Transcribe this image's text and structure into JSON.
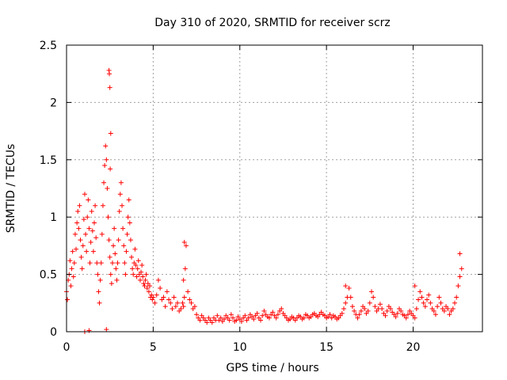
{
  "chart_data": {
    "type": "scatter",
    "title": "Day 310 of 2020, SRMTID for receiver scrz",
    "xlabel": "GPS time / hours",
    "ylabel": "SRMTID / TECUs",
    "xlim": [
      0,
      24
    ],
    "ylim": [
      0,
      2.5
    ],
    "xticks": [
      0,
      5,
      10,
      15,
      20
    ],
    "yticks": [
      0,
      0.5,
      1,
      1.5,
      2,
      2.5
    ],
    "x_tick_labels": [
      "0",
      "5",
      "10",
      "15",
      "20"
    ],
    "y_tick_labels": [
      "0",
      "0.5",
      "1",
      "1.5",
      "2",
      "2.5"
    ],
    "grid": true,
    "marker": "+",
    "color": "#ff0000",
    "series": [
      {
        "name": "SRMTID",
        "x": [
          0.0,
          0.05,
          0.1,
          0.15,
          0.2,
          0.25,
          0.3,
          0.35,
          0.4,
          0.45,
          0.5,
          0.55,
          0.6,
          0.65,
          0.7,
          0.75,
          0.8,
          0.85,
          0.9,
          0.95,
          1.0,
          1.05,
          1.1,
          1.15,
          1.2,
          1.25,
          1.3,
          1.35,
          1.4,
          1.45,
          1.5,
          1.55,
          1.6,
          1.65,
          1.7,
          1.75,
          1.8,
          1.85,
          1.9,
          1.95,
          2.0,
          2.05,
          2.1,
          2.15,
          2.2,
          2.25,
          2.3,
          2.35,
          2.4,
          2.45,
          2.5,
          2.55,
          2.6,
          2.65,
          2.7,
          2.75,
          2.8,
          2.85,
          2.9,
          2.95,
          3.0,
          3.05,
          3.1,
          3.15,
          3.2,
          3.25,
          3.3,
          3.35,
          3.4,
          3.45,
          3.5,
          3.55,
          3.6,
          3.65,
          3.7,
          3.75,
          3.8,
          3.85,
          3.9,
          3.95,
          4.0,
          4.05,
          4.1,
          4.15,
          4.2,
          4.25,
          4.3,
          4.35,
          4.4,
          4.45,
          4.5,
          4.55,
          4.6,
          4.65,
          4.7,
          4.75,
          4.8,
          4.85,
          4.9,
          4.95,
          5.0,
          5.1,
          5.2,
          5.3,
          5.4,
          5.5,
          5.6,
          5.7,
          5.8,
          5.9,
          6.0,
          6.1,
          6.2,
          6.3,
          6.4,
          6.5,
          6.6,
          6.7,
          6.75,
          6.8,
          6.85,
          6.9,
          7.0,
          7.1,
          7.2,
          7.3,
          7.4,
          7.5,
          7.6,
          7.7,
          7.8,
          7.9,
          8.0,
          8.1,
          8.2,
          8.3,
          8.4,
          8.5,
          8.6,
          8.7,
          8.8,
          8.9,
          9.0,
          9.1,
          9.2,
          9.3,
          9.4,
          9.5,
          9.6,
          9.7,
          9.8,
          9.9,
          10.0,
          10.1,
          10.2,
          10.3,
          10.4,
          10.5,
          10.6,
          10.7,
          10.8,
          10.9,
          11.0,
          11.1,
          11.2,
          11.3,
          11.4,
          11.5,
          11.6,
          11.7,
          11.8,
          11.9,
          12.0,
          12.1,
          12.2,
          12.3,
          12.4,
          12.5,
          12.6,
          12.7,
          12.8,
          12.9,
          13.0,
          13.1,
          13.2,
          13.3,
          13.4,
          13.5,
          13.6,
          13.7,
          13.8,
          13.9,
          14.0,
          14.1,
          14.2,
          14.3,
          14.4,
          14.5,
          14.6,
          14.7,
          14.8,
          14.9,
          15.0,
          15.1,
          15.2,
          15.3,
          15.4,
          15.5,
          15.6,
          15.7,
          15.8,
          15.9,
          16.0,
          16.1,
          16.2,
          16.3,
          16.4,
          16.5,
          16.6,
          16.7,
          16.8,
          16.9,
          17.0,
          17.1,
          17.2,
          17.3,
          17.4,
          17.5,
          17.6,
          17.7,
          17.8,
          17.9,
          18.0,
          18.1,
          18.2,
          18.3,
          18.4,
          18.5,
          18.6,
          18.7,
          18.8,
          18.9,
          19.0,
          19.1,
          19.2,
          19.3,
          19.4,
          19.5,
          19.6,
          19.7,
          19.8,
          19.9,
          20.0,
          20.1,
          20.2,
          20.3,
          20.4,
          20.5,
          20.6,
          20.7,
          20.8,
          20.9,
          21.0,
          21.1,
          21.2,
          21.3,
          21.4,
          21.5,
          21.6,
          21.7,
          21.8,
          21.9,
          22.0,
          22.1,
          22.2,
          22.3,
          22.4,
          22.5,
          22.6,
          22.7,
          22.8,
          2.45,
          2.47,
          2.5,
          2.55,
          2.52,
          2.3,
          1.3,
          1.05,
          6.8,
          6.75,
          16.1,
          20.1,
          22.7
        ],
        "y": [
          0.35,
          0.28,
          0.45,
          0.5,
          0.62,
          0.4,
          0.55,
          0.7,
          0.48,
          0.6,
          0.85,
          0.72,
          0.95,
          1.05,
          0.9,
          1.1,
          0.8,
          0.65,
          0.55,
          0.75,
          0.98,
          1.2,
          0.85,
          0.7,
          1.0,
          1.15,
          0.9,
          0.6,
          0.78,
          1.05,
          0.88,
          0.7,
          0.95,
          1.1,
          0.82,
          0.6,
          0.5,
          0.35,
          0.25,
          0.45,
          0.6,
          0.85,
          1.1,
          1.3,
          1.45,
          1.62,
          1.5,
          1.25,
          1.0,
          0.8,
          0.65,
          0.5,
          0.42,
          0.6,
          0.75,
          0.9,
          0.68,
          0.55,
          0.45,
          0.6,
          0.8,
          1.05,
          1.2,
          1.3,
          1.1,
          0.9,
          0.75,
          0.6,
          0.5,
          0.7,
          0.85,
          1.0,
          1.15,
          0.95,
          0.8,
          0.65,
          0.55,
          0.5,
          0.6,
          0.72,
          0.58,
          0.48,
          0.55,
          0.62,
          0.5,
          0.45,
          0.52,
          0.58,
          0.48,
          0.42,
          0.4,
          0.45,
          0.5,
          0.38,
          0.42,
          0.35,
          0.4,
          0.3,
          0.32,
          0.28,
          0.3,
          0.25,
          0.32,
          0.45,
          0.38,
          0.28,
          0.3,
          0.22,
          0.35,
          0.28,
          0.25,
          0.2,
          0.3,
          0.22,
          0.25,
          0.18,
          0.2,
          0.25,
          0.22,
          0.3,
          0.55,
          0.75,
          0.35,
          0.28,
          0.25,
          0.2,
          0.22,
          0.15,
          0.12,
          0.1,
          0.14,
          0.12,
          0.1,
          0.08,
          0.12,
          0.1,
          0.08,
          0.12,
          0.1,
          0.14,
          0.1,
          0.12,
          0.09,
          0.11,
          0.14,
          0.12,
          0.1,
          0.15,
          0.12,
          0.09,
          0.1,
          0.13,
          0.11,
          0.09,
          0.12,
          0.14,
          0.1,
          0.12,
          0.15,
          0.13,
          0.11,
          0.14,
          0.16,
          0.12,
          0.1,
          0.14,
          0.18,
          0.15,
          0.13,
          0.12,
          0.15,
          0.17,
          0.14,
          0.12,
          0.15,
          0.18,
          0.2,
          0.16,
          0.14,
          0.12,
          0.1,
          0.11,
          0.13,
          0.12,
          0.1,
          0.12,
          0.14,
          0.13,
          0.11,
          0.12,
          0.15,
          0.14,
          0.12,
          0.13,
          0.15,
          0.16,
          0.14,
          0.13,
          0.15,
          0.17,
          0.15,
          0.14,
          0.12,
          0.13,
          0.15,
          0.12,
          0.14,
          0.13,
          0.11,
          0.12,
          0.14,
          0.16,
          0.2,
          0.25,
          0.3,
          0.38,
          0.3,
          0.22,
          0.18,
          0.15,
          0.12,
          0.15,
          0.18,
          0.22,
          0.2,
          0.16,
          0.18,
          0.25,
          0.35,
          0.3,
          0.22,
          0.18,
          0.2,
          0.24,
          0.2,
          0.16,
          0.14,
          0.18,
          0.22,
          0.2,
          0.17,
          0.15,
          0.13,
          0.16,
          0.2,
          0.18,
          0.15,
          0.14,
          0.12,
          0.15,
          0.18,
          0.16,
          0.14,
          0.12,
          0.2,
          0.28,
          0.35,
          0.3,
          0.25,
          0.22,
          0.28,
          0.32,
          0.25,
          0.2,
          0.18,
          0.15,
          0.22,
          0.3,
          0.25,
          0.2,
          0.18,
          0.22,
          0.2,
          0.15,
          0.18,
          0.2,
          0.25,
          0.3,
          0.4,
          0.48,
          0.55,
          2.28,
          2.25,
          2.13,
          1.73,
          1.42,
          0.02,
          0.01,
          0.0,
          0.78,
          0.45,
          0.4,
          0.4,
          0.68
        ]
      }
    ]
  }
}
